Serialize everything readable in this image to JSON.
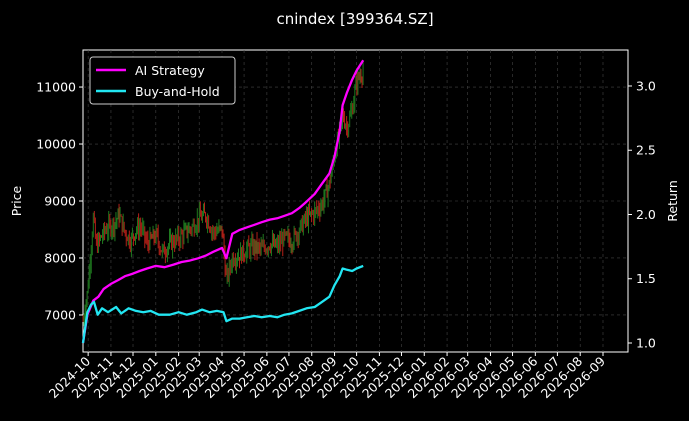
{
  "chart_data": {
    "type": "line",
    "title": "cnindex [399364.SZ]",
    "xlabel": "",
    "ylabel_left": "Price",
    "ylabel_right": "Return",
    "x_ticks": [
      "2024-10",
      "2024-11",
      "2024-12",
      "2025-01",
      "2025-02",
      "2025-03",
      "2025-04",
      "2025-05",
      "2025-06",
      "2025-07",
      "2025-08",
      "2025-09",
      "2025-10",
      "2025-11",
      "2025-12",
      "2026-01",
      "2026-02",
      "2026-03",
      "2026-04",
      "2026-05",
      "2026-06",
      "2026-07",
      "2026-08",
      "2026-09"
    ],
    "y_left_ticks": [
      7000,
      8000,
      9000,
      10000,
      11000
    ],
    "y_left_range": [
      6350,
      11650
    ],
    "y_right_ticks": [
      1.0,
      1.5,
      2.0,
      2.5,
      3.0
    ],
    "y_right_range": [
      0.93,
      3.28
    ],
    "x_range": [
      "2024-09-24",
      "2026-10-05"
    ],
    "grid": true,
    "legend_position": "top-left",
    "series": [
      {
        "name": "AI Strategy",
        "axis": "right",
        "color": "#ff00ff",
        "points": [
          [
            "2024-09-24",
            1.0
          ],
          [
            "2024-09-30",
            1.22
          ],
          [
            "2024-10-08",
            1.33
          ],
          [
            "2024-10-15",
            1.36
          ],
          [
            "2024-10-22",
            1.42
          ],
          [
            "2024-11-01",
            1.46
          ],
          [
            "2024-11-11",
            1.49
          ],
          [
            "2024-11-20",
            1.52
          ],
          [
            "2024-12-01",
            1.54
          ],
          [
            "2024-12-10",
            1.56
          ],
          [
            "2024-12-20",
            1.58
          ],
          [
            "2025-01-01",
            1.6
          ],
          [
            "2025-01-13",
            1.59
          ],
          [
            "2025-01-25",
            1.61
          ],
          [
            "2025-02-05",
            1.63
          ],
          [
            "2025-02-15",
            1.64
          ],
          [
            "2025-02-28",
            1.66
          ],
          [
            "2025-03-10",
            1.68
          ],
          [
            "2025-03-20",
            1.71
          ],
          [
            "2025-04-01",
            1.74
          ],
          [
            "2025-04-07",
            1.66
          ],
          [
            "2025-04-15",
            1.85
          ],
          [
            "2025-04-25",
            1.88
          ],
          [
            "2025-05-05",
            1.9
          ],
          [
            "2025-05-15",
            1.92
          ],
          [
            "2025-05-25",
            1.94
          ],
          [
            "2025-06-05",
            1.96
          ],
          [
            "2025-06-15",
            1.97
          ],
          [
            "2025-06-25",
            1.99
          ],
          [
            "2025-07-05",
            2.01
          ],
          [
            "2025-07-15",
            2.05
          ],
          [
            "2025-07-25",
            2.1
          ],
          [
            "2025-08-05",
            2.16
          ],
          [
            "2025-08-15",
            2.24
          ],
          [
            "2025-08-25",
            2.32
          ],
          [
            "2025-09-01",
            2.45
          ],
          [
            "2025-09-08",
            2.65
          ],
          [
            "2025-09-12",
            2.85
          ],
          [
            "2025-09-18",
            2.95
          ],
          [
            "2025-09-25",
            3.05
          ],
          [
            "2025-10-01",
            3.12
          ],
          [
            "2025-10-10",
            3.2
          ]
        ]
      },
      {
        "name": "Buy-and-Hold",
        "axis": "right",
        "color": "#22e6f2",
        "points": [
          [
            "2024-09-24",
            1.0
          ],
          [
            "2024-09-30",
            1.24
          ],
          [
            "2024-10-05",
            1.3
          ],
          [
            "2024-10-09",
            1.32
          ],
          [
            "2024-10-14",
            1.22
          ],
          [
            "2024-10-20",
            1.27
          ],
          [
            "2024-10-28",
            1.24
          ],
          [
            "2024-11-08",
            1.28
          ],
          [
            "2024-11-15",
            1.23
          ],
          [
            "2024-11-25",
            1.27
          ],
          [
            "2024-12-05",
            1.25
          ],
          [
            "2024-12-15",
            1.24
          ],
          [
            "2024-12-25",
            1.25
          ],
          [
            "2025-01-05",
            1.22
          ],
          [
            "2025-01-20",
            1.22
          ],
          [
            "2025-02-01",
            1.24
          ],
          [
            "2025-02-12",
            1.22
          ],
          [
            "2025-02-25",
            1.24
          ],
          [
            "2025-03-05",
            1.26
          ],
          [
            "2025-03-15",
            1.24
          ],
          [
            "2025-03-25",
            1.25
          ],
          [
            "2025-04-03",
            1.24
          ],
          [
            "2025-04-07",
            1.17
          ],
          [
            "2025-04-15",
            1.19
          ],
          [
            "2025-04-25",
            1.19
          ],
          [
            "2025-05-05",
            1.2
          ],
          [
            "2025-05-15",
            1.21
          ],
          [
            "2025-05-25",
            1.2
          ],
          [
            "2025-06-05",
            1.21
          ],
          [
            "2025-06-15",
            1.2
          ],
          [
            "2025-06-25",
            1.22
          ],
          [
            "2025-07-05",
            1.23
          ],
          [
            "2025-07-15",
            1.25
          ],
          [
            "2025-07-25",
            1.27
          ],
          [
            "2025-08-05",
            1.28
          ],
          [
            "2025-08-15",
            1.32
          ],
          [
            "2025-08-25",
            1.36
          ],
          [
            "2025-09-01",
            1.45
          ],
          [
            "2025-09-08",
            1.52
          ],
          [
            "2025-09-12",
            1.58
          ],
          [
            "2025-09-18",
            1.57
          ],
          [
            "2025-09-25",
            1.56
          ],
          [
            "2025-10-01",
            1.58
          ],
          [
            "2025-10-10",
            1.6
          ]
        ]
      }
    ],
    "candles": {
      "axis": "left",
      "up_color": "#1f7a1f",
      "down_color": "#b32018",
      "points": [
        [
          "2024-09-24",
          6900
        ],
        [
          "2024-09-30",
          7400
        ],
        [
          "2024-10-08",
          8700
        ],
        [
          "2024-10-12",
          8200
        ],
        [
          "2024-10-18",
          8350
        ],
        [
          "2024-10-25",
          8500
        ],
        [
          "2024-11-05",
          8600
        ],
        [
          "2024-11-12",
          8750
        ],
        [
          "2024-11-20",
          8450
        ],
        [
          "2024-11-28",
          8300
        ],
        [
          "2024-12-05",
          8500
        ],
        [
          "2024-12-12",
          8550
        ],
        [
          "2024-12-20",
          8250
        ],
        [
          "2025-01-01",
          8400
        ],
        [
          "2025-01-10",
          8100
        ],
        [
          "2025-01-20",
          8250
        ],
        [
          "2025-02-01",
          8350
        ],
        [
          "2025-02-10",
          8450
        ],
        [
          "2025-02-20",
          8550
        ],
        [
          "2025-03-01",
          8700
        ],
        [
          "2025-03-10",
          8750
        ],
        [
          "2025-03-20",
          8450
        ],
        [
          "2025-04-01",
          8500
        ],
        [
          "2025-04-07",
          7600
        ],
        [
          "2025-04-15",
          8000
        ],
        [
          "2025-04-25",
          8050
        ],
        [
          "2025-05-05",
          8150
        ],
        [
          "2025-05-15",
          8200
        ],
        [
          "2025-05-25",
          8150
        ],
        [
          "2025-06-05",
          8250
        ],
        [
          "2025-06-15",
          8200
        ],
        [
          "2025-06-25",
          8350
        ],
        [
          "2025-07-05",
          8300
        ],
        [
          "2025-07-15",
          8500
        ],
        [
          "2025-07-25",
          8700
        ],
        [
          "2025-08-05",
          8800
        ],
        [
          "2025-08-15",
          8950
        ],
        [
          "2025-08-25",
          9300
        ],
        [
          "2025-09-01",
          9800
        ],
        [
          "2025-09-08",
          10200
        ],
        [
          "2025-09-12",
          10500
        ],
        [
          "2025-09-18",
          10300
        ],
        [
          "2025-09-25",
          10600
        ],
        [
          "2025-10-01",
          11100
        ],
        [
          "2025-10-10",
          11300
        ]
      ]
    }
  }
}
